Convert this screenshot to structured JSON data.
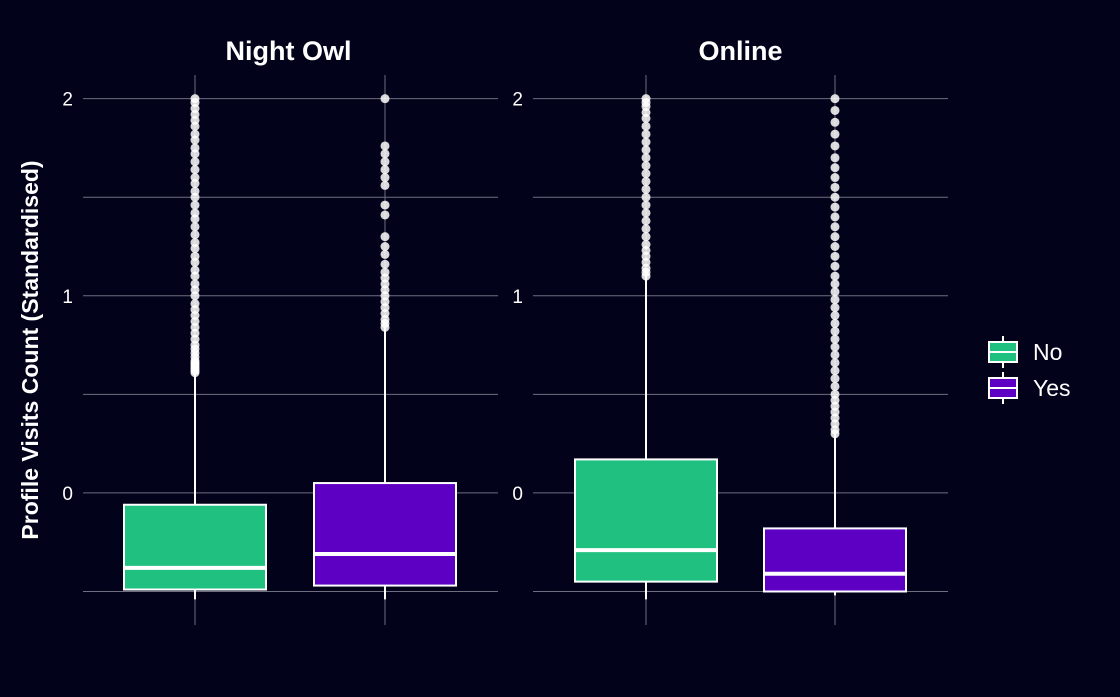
{
  "chart_data": {
    "type": "boxplot",
    "title": "",
    "ylabel": "Profile Visits Count (Standardised)",
    "xlabel": "",
    "ylim": [
      -0.67,
      2.12
    ],
    "yticks": [
      0,
      1,
      2
    ],
    "grid": true,
    "legend": {
      "placement": "right",
      "entries": [
        {
          "label": "No",
          "color": "#20c080"
        },
        {
          "label": "Yes",
          "color": "#5e00c3"
        }
      ]
    },
    "colors": {
      "background": "#02021a",
      "grid": "#6e6e80",
      "box_outline": "#ffffff",
      "outlier": "#ffffff"
    },
    "facets": [
      {
        "title": "Night Owl",
        "groups": [
          {
            "label": "No",
            "whisker_low": -0.54,
            "q1": -0.49,
            "median": -0.38,
            "q3": -0.06,
            "whisker_high": 0.61,
            "outliers": [
              0.61,
              0.62,
              0.63,
              0.64,
              0.65,
              0.66,
              0.67,
              0.69,
              0.71,
              0.73,
              0.75,
              0.78,
              0.81,
              0.84,
              0.87,
              0.9,
              0.93,
              0.96,
              1.0,
              1.03,
              1.06,
              1.1,
              1.13,
              1.17,
              1.2,
              1.24,
              1.27,
              1.31,
              1.35,
              1.39,
              1.42,
              1.46,
              1.5,
              1.53,
              1.57,
              1.6,
              1.64,
              1.68,
              1.72,
              1.75,
              1.79,
              1.82,
              1.86,
              1.89,
              1.92,
              1.95,
              1.98,
              2.0
            ]
          },
          {
            "label": "Yes",
            "whisker_low": -0.54,
            "q1": -0.47,
            "median": -0.31,
            "q3": 0.05,
            "whisker_high": 0.84,
            "outliers": [
              0.84,
              0.86,
              0.88,
              0.91,
              0.94,
              0.97,
              1.0,
              1.03,
              1.06,
              1.09,
              1.12,
              1.16,
              1.21,
              1.25,
              1.3,
              1.41,
              1.46,
              1.56,
              1.6,
              1.64,
              1.68,
              1.72,
              1.76,
              2.0
            ]
          }
        ]
      },
      {
        "title": "Online",
        "groups": [
          {
            "label": "No",
            "whisker_low": -0.54,
            "q1": -0.45,
            "median": -0.29,
            "q3": 0.17,
            "whisker_high": 1.1,
            "outliers": [
              1.1,
              1.12,
              1.14,
              1.17,
              1.2,
              1.23,
              1.26,
              1.3,
              1.34,
              1.38,
              1.42,
              1.46,
              1.5,
              1.54,
              1.58,
              1.62,
              1.66,
              1.7,
              1.74,
              1.78,
              1.82,
              1.86,
              1.9,
              1.93,
              1.96,
              1.98,
              2.0
            ]
          },
          {
            "label": "Yes",
            "whisker_low": -0.52,
            "q1": -0.5,
            "median": -0.41,
            "q3": -0.18,
            "whisker_high": 0.3,
            "outliers": [
              0.3,
              0.32,
              0.35,
              0.38,
              0.41,
              0.44,
              0.47,
              0.5,
              0.54,
              0.58,
              0.62,
              0.66,
              0.7,
              0.74,
              0.78,
              0.82,
              0.86,
              0.9,
              0.94,
              0.98,
              1.02,
              1.06,
              1.1,
              1.15,
              1.2,
              1.25,
              1.3,
              1.35,
              1.4,
              1.45,
              1.5,
              1.55,
              1.6,
              1.65,
              1.7,
              1.76,
              1.82,
              1.88,
              1.94,
              2.0
            ]
          }
        ]
      }
    ]
  }
}
